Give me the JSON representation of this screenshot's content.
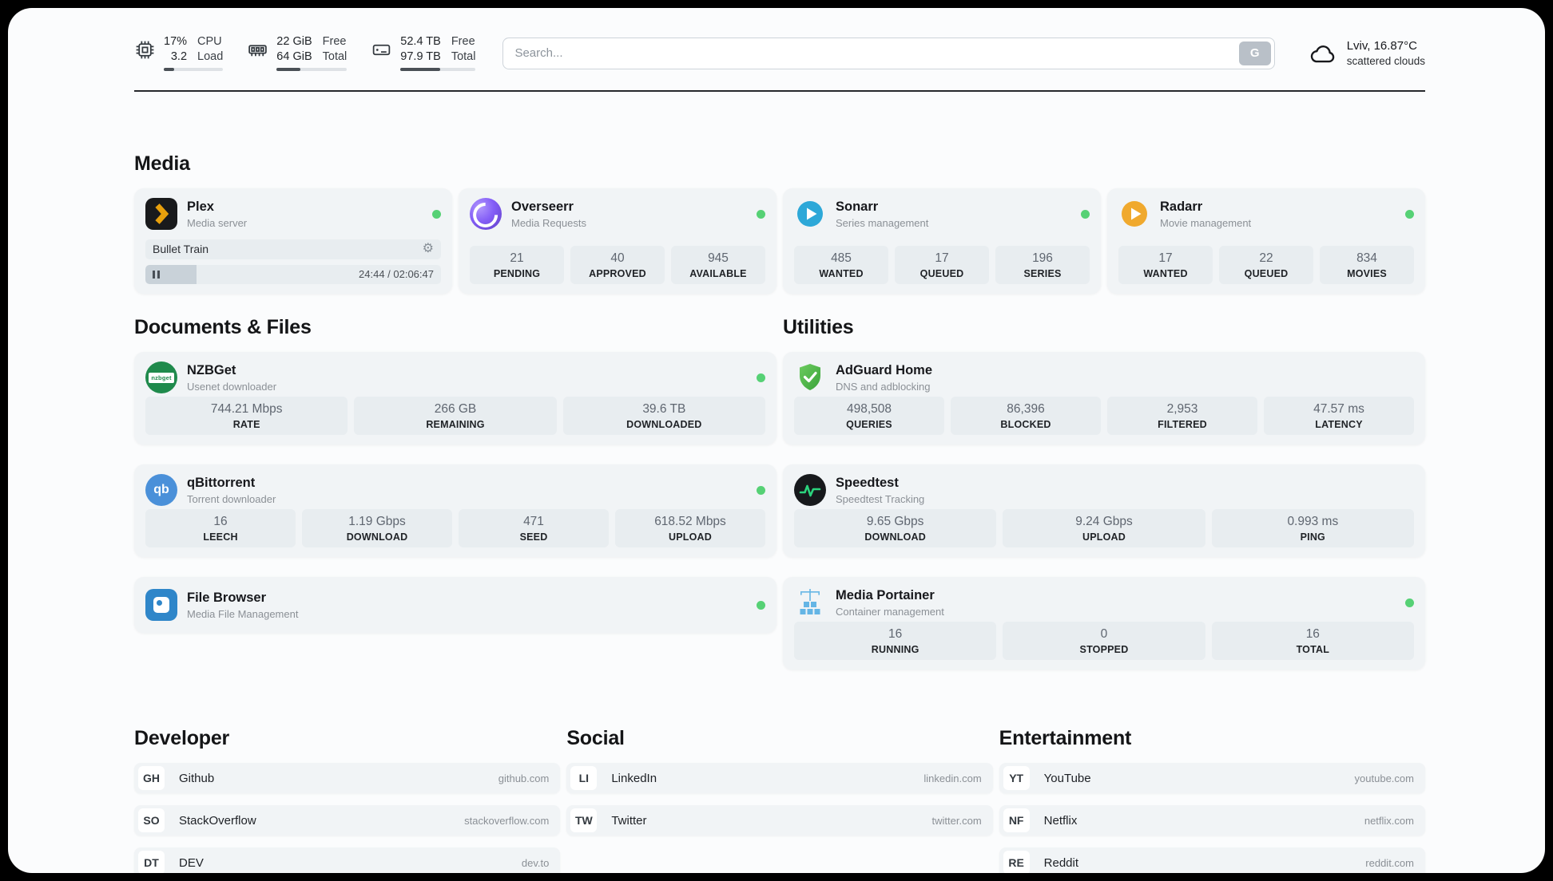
{
  "colors": {
    "status_online": "#56d175",
    "plex_gold": "#e8a00c",
    "sonarr_blue": "#2da8d8",
    "radarr_yellow": "#f0a92e",
    "adguard_green": "#57b94c",
    "speedtest_pulse": "#2bd47d",
    "portainer_blue": "#64b5e5"
  },
  "icons": {
    "gear": "⚙"
  },
  "header": {
    "cpu": {
      "value_top": "17%",
      "value_bottom": "3.2",
      "label_top": "CPU",
      "label_bottom": "Load",
      "percent": 17
    },
    "ram": {
      "value_top": "22 GiB",
      "value_bottom": "64 GiB",
      "label_top": "Free",
      "label_bottom": "Total",
      "percent": 34
    },
    "disk": {
      "value_top": "52.4 TB",
      "value_bottom": "97.9 TB",
      "label_top": "Free",
      "label_bottom": "Total",
      "percent": 53
    },
    "search": {
      "placeholder": "Search...",
      "button_label": "G"
    },
    "weather": {
      "location": "Lviv, 16.87°C",
      "condition": "scattered clouds"
    }
  },
  "media": {
    "title": "Media",
    "plex": {
      "name": "Plex",
      "subtitle": "Media server",
      "now_playing": "Bullet Train",
      "time": "24:44 / 02:06:47"
    },
    "overseerr": {
      "name": "Overseerr",
      "subtitle": "Media Requests",
      "stats": [
        {
          "value": "21",
          "label": "PENDING"
        },
        {
          "value": "40",
          "label": "APPROVED"
        },
        {
          "value": "945",
          "label": "AVAILABLE"
        }
      ]
    },
    "sonarr": {
      "name": "Sonarr",
      "subtitle": "Series management",
      "stats": [
        {
          "value": "485",
          "label": "WANTED"
        },
        {
          "value": "17",
          "label": "QUEUED"
        },
        {
          "value": "196",
          "label": "SERIES"
        }
      ]
    },
    "radarr": {
      "name": "Radarr",
      "subtitle": "Movie management",
      "stats": [
        {
          "value": "17",
          "label": "WANTED"
        },
        {
          "value": "22",
          "label": "QUEUED"
        },
        {
          "value": "834",
          "label": "MOVIES"
        }
      ]
    }
  },
  "documents": {
    "title": "Documents & Files",
    "nzbget": {
      "name": "NZBGet",
      "subtitle": "Usenet downloader",
      "icon_text": "nzbget",
      "stats": [
        {
          "value": "744.21 Mbps",
          "label": "RATE"
        },
        {
          "value": "266 GB",
          "label": "REMAINING"
        },
        {
          "value": "39.6 TB",
          "label": "DOWNLOADED"
        }
      ]
    },
    "qbittorrent": {
      "name": "qBittorrent",
      "subtitle": "Torrent downloader",
      "icon_text": "qb",
      "stats": [
        {
          "value": "16",
          "label": "LEECH"
        },
        {
          "value": "1.19 Gbps",
          "label": "DOWNLOAD"
        },
        {
          "value": "471",
          "label": "SEED"
        },
        {
          "value": "618.52 Mbps",
          "label": "UPLOAD"
        }
      ]
    },
    "filebrowser": {
      "name": "File Browser",
      "subtitle": "Media File Management"
    }
  },
  "utilities": {
    "title": "Utilities",
    "adguard": {
      "name": "AdGuard Home",
      "subtitle": "DNS and adblocking",
      "stats": [
        {
          "value": "498,508",
          "label": "QUERIES"
        },
        {
          "value": "86,396",
          "label": "BLOCKED"
        },
        {
          "value": "2,953",
          "label": "FILTERED"
        },
        {
          "value": "47.57 ms",
          "label": "LATENCY"
        }
      ]
    },
    "speedtest": {
      "name": "Speedtest",
      "subtitle": "Speedtest Tracking",
      "stats": [
        {
          "value": "9.65 Gbps",
          "label": "DOWNLOAD"
        },
        {
          "value": "9.24 Gbps",
          "label": "UPLOAD"
        },
        {
          "value": "0.993 ms",
          "label": "PING"
        }
      ]
    },
    "portainer": {
      "name": "Media Portainer",
      "subtitle": "Container management",
      "stats": [
        {
          "value": "16",
          "label": "RUNNING"
        },
        {
          "value": "0",
          "label": "STOPPED"
        },
        {
          "value": "16",
          "label": "TOTAL"
        }
      ]
    }
  },
  "bookmarks": {
    "developer": {
      "title": "Developer",
      "items": [
        {
          "abbr": "GH",
          "name": "Github",
          "url": "github.com"
        },
        {
          "abbr": "SO",
          "name": "StackOverflow",
          "url": "stackoverflow.com"
        },
        {
          "abbr": "DT",
          "name": "DEV",
          "url": "dev.to"
        }
      ]
    },
    "social": {
      "title": "Social",
      "items": [
        {
          "abbr": "LI",
          "name": "LinkedIn",
          "url": "linkedin.com"
        },
        {
          "abbr": "TW",
          "name": "Twitter",
          "url": "twitter.com"
        }
      ]
    },
    "entertainment": {
      "title": "Entertainment",
      "items": [
        {
          "abbr": "YT",
          "name": "YouTube",
          "url": "youtube.com"
        },
        {
          "abbr": "NF",
          "name": "Netflix",
          "url": "netflix.com"
        },
        {
          "abbr": "RE",
          "name": "Reddit",
          "url": "reddit.com"
        }
      ]
    }
  }
}
